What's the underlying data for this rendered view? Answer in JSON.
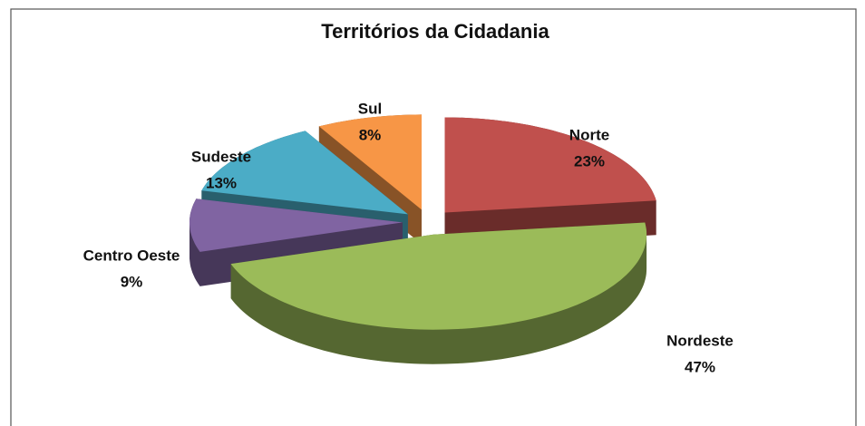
{
  "chart_data": {
    "type": "pie",
    "title": "Territórios da Cidadania",
    "categories": [
      "Norte",
      "Nordeste",
      "Centro Oeste",
      "Sudeste",
      "Sul"
    ],
    "values": [
      23,
      47,
      9,
      13,
      8
    ],
    "value_labels": [
      "23%",
      "47%",
      "9%",
      "13%",
      "8%"
    ],
    "colors": [
      "#c0504d",
      "#9bbb59",
      "#8064a2",
      "#4bacc6",
      "#f79646"
    ],
    "three_d": true,
    "exploded": true
  }
}
